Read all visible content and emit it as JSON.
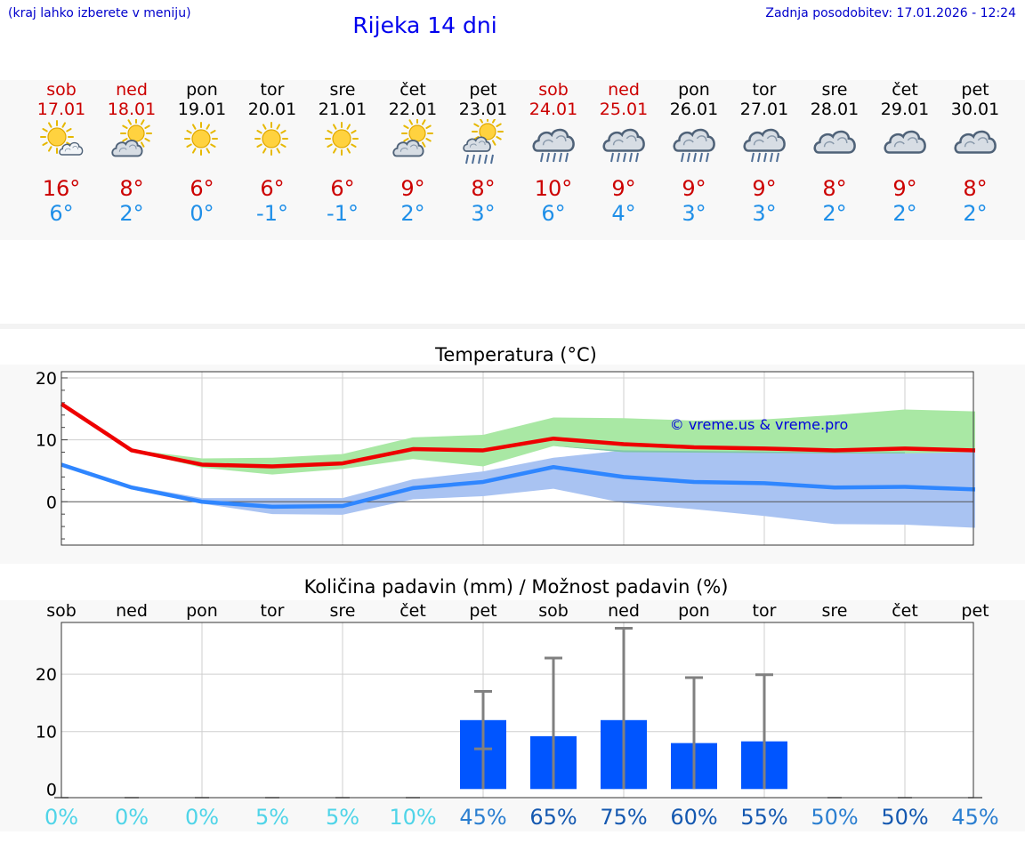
{
  "header": {
    "region_hint": "(kraj lahko izberete v meniju)",
    "title": "Rijeka 14 dni",
    "last_update": "Zadnja posodobitev: 17.01.2026 - 12:24"
  },
  "colors": {
    "weekend": "#cc0000",
    "weekday": "#000000",
    "tmax": "#cc0000",
    "tmin": "#1f8fe8",
    "max_line": "#ee0000",
    "min_line": "#2f86ff",
    "max_band": "#a9e8a4",
    "min_band": "#a9c3f2",
    "overlap_band": "#7fc7a6",
    "bar": "#0055ff",
    "errbar": "#808080"
  },
  "days": [
    {
      "name": "sob",
      "date": "17.01",
      "weekend": true,
      "icon": "sun-cloud-icon",
      "tmax": "16°",
      "tmin": "6°"
    },
    {
      "name": "ned",
      "date": "18.01",
      "weekend": true,
      "icon": "cloud-sun-icon",
      "tmax": "8°",
      "tmin": "2°"
    },
    {
      "name": "pon",
      "date": "19.01",
      "weekend": false,
      "icon": "sun-icon",
      "tmax": "6°",
      "tmin": "0°"
    },
    {
      "name": "tor",
      "date": "20.01",
      "weekend": false,
      "icon": "sun-icon",
      "tmax": "6°",
      "tmin": "-1°"
    },
    {
      "name": "sre",
      "date": "21.01",
      "weekend": false,
      "icon": "sun-icon",
      "tmax": "6°",
      "tmin": "-1°"
    },
    {
      "name": "čet",
      "date": "22.01",
      "weekend": false,
      "icon": "cloud-sun-icon",
      "tmax": "9°",
      "tmin": "2°"
    },
    {
      "name": "pet",
      "date": "23.01",
      "weekend": false,
      "icon": "sun-rain-icon",
      "tmax": "8°",
      "tmin": "3°"
    },
    {
      "name": "sob",
      "date": "24.01",
      "weekend": true,
      "icon": "rain-cloud-icon",
      "tmax": "10°",
      "tmin": "6°"
    },
    {
      "name": "ned",
      "date": "25.01",
      "weekend": true,
      "icon": "rain-cloud-icon",
      "tmax": "9°",
      "tmin": "4°"
    },
    {
      "name": "pon",
      "date": "26.01",
      "weekend": false,
      "icon": "rain-cloud-icon",
      "tmax": "9°",
      "tmin": "3°"
    },
    {
      "name": "tor",
      "date": "27.01",
      "weekend": false,
      "icon": "rain-cloud-icon",
      "tmax": "9°",
      "tmin": "3°"
    },
    {
      "name": "sre",
      "date": "28.01",
      "weekend": false,
      "icon": "cloud-icon",
      "tmax": "8°",
      "tmin": "2°"
    },
    {
      "name": "čet",
      "date": "29.01",
      "weekend": false,
      "icon": "cloud-icon",
      "tmax": "9°",
      "tmin": "2°"
    },
    {
      "name": "pet",
      "date": "30.01",
      "weekend": false,
      "icon": "cloud-icon",
      "tmax": "8°",
      "tmin": "2°"
    }
  ],
  "chart_data": [
    {
      "type": "line",
      "title": "Temperatura (°C)",
      "watermark": "© vreme.us & vreme.pro",
      "x": [
        0,
        1,
        2,
        3,
        4,
        5,
        6,
        7,
        8,
        9,
        10,
        11,
        12,
        13
      ],
      "ylim": [
        -7,
        21
      ],
      "yticks": [
        "20",
        "10",
        "0"
      ],
      "ytick_values": [
        20,
        10,
        0
      ],
      "series": [
        {
          "name": "max",
          "values": [
            15.8,
            8.3,
            6.0,
            5.7,
            6.2,
            8.5,
            8.3,
            10.2,
            9.3,
            8.8,
            8.6,
            8.3,
            8.6,
            8.3
          ],
          "band_low": [
            15.8,
            8.2,
            5.5,
            4.4,
            5.3,
            6.9,
            5.7,
            9.0,
            8.0,
            8.0,
            8.0,
            7.8,
            7.8,
            8.0
          ],
          "band_high": [
            15.8,
            8.4,
            7.0,
            7.1,
            7.7,
            10.4,
            10.8,
            13.6,
            13.5,
            13.1,
            13.3,
            14.0,
            14.9,
            14.6
          ]
        },
        {
          "name": "min",
          "values": [
            6.0,
            2.3,
            0.0,
            -0.8,
            -0.7,
            2.2,
            3.2,
            5.6,
            4.0,
            3.2,
            3.0,
            2.3,
            2.4,
            2.0
          ],
          "band_low": [
            6.0,
            2.0,
            -0.3,
            -2.0,
            -2.1,
            0.4,
            0.9,
            2.1,
            -0.2,
            -1.2,
            -2.3,
            -3.6,
            -3.7,
            -4.2
          ],
          "band_high": [
            6.0,
            2.6,
            0.6,
            0.6,
            0.6,
            3.6,
            4.9,
            7.1,
            8.3,
            8.0,
            8.0,
            8.0,
            8.0,
            8.0
          ]
        }
      ]
    },
    {
      "type": "bar",
      "title": "Količina padavin (mm) / Možnost padavin (%)",
      "categories": [
        "sob",
        "ned",
        "pon",
        "tor",
        "sre",
        "čet",
        "pet",
        "sob",
        "ned",
        "pon",
        "tor",
        "sre",
        "čet",
        "pet"
      ],
      "ylim": [
        -1.5,
        29
      ],
      "yticks": [
        "20",
        "10",
        "0"
      ],
      "ytick_values": [
        20,
        10,
        0
      ],
      "values": [
        0,
        0,
        0,
        0,
        0,
        0,
        12.0,
        9.2,
        12.0,
        8.0,
        8.3,
        0,
        0,
        0
      ],
      "err_low": [
        0,
        0,
        0,
        0,
        0,
        0,
        7.0,
        0,
        0,
        0,
        0,
        0,
        0,
        0
      ],
      "err_high": [
        0,
        0,
        0,
        0,
        0,
        0,
        17.0,
        22.8,
        28.0,
        19.4,
        19.9,
        0,
        0,
        0
      ],
      "chance": [
        "0%",
        "0%",
        "0%",
        "5%",
        "5%",
        "10%",
        "45%",
        "65%",
        "75%",
        "60%",
        "55%",
        "50%",
        "50%",
        "45%"
      ],
      "chance_colors": [
        "#4fd4e8",
        "#4fd4e8",
        "#4fd4e8",
        "#4fd4e8",
        "#4fd4e8",
        "#4fd4e8",
        "#2a7ed0",
        "#1458b0",
        "#1458b0",
        "#1458b0",
        "#1458b0",
        "#2a7ed0",
        "#1458b0",
        "#2a7ed0"
      ]
    }
  ]
}
